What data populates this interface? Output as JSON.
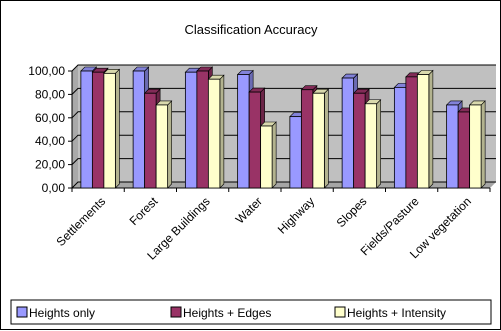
{
  "chart_data": {
    "type": "bar",
    "title": "Classification Accuracy",
    "xlabel": "",
    "ylabel": "",
    "ylim": [
      0,
      100
    ],
    "yticks": [
      "0,00",
      "20,00",
      "40,00",
      "60,00",
      "80,00",
      "100,00"
    ],
    "ytick_values": [
      0,
      20,
      40,
      60,
      80,
      100
    ],
    "grid": true,
    "legend_position": "bottom",
    "plot_background": "#c0c0c0",
    "categories": [
      "Settlements",
      "Forest",
      "Large Buildings",
      "Water",
      "Highway",
      "Slopes",
      "Fields/Pasture",
      "Low vegetation"
    ],
    "series": [
      {
        "name": "Heights only",
        "color": "#9999ff",
        "values": [
          100,
          100,
          99,
          97,
          61,
          94,
          86,
          71
        ]
      },
      {
        "name": "Heights + Edges",
        "color": "#993366",
        "values": [
          99,
          81,
          100,
          82,
          84,
          81,
          95,
          65
        ]
      },
      {
        "name": "Heights + Intensity",
        "color": "#ffffcc",
        "values": [
          98,
          71,
          93,
          53,
          81,
          72,
          97,
          71
        ]
      }
    ]
  }
}
